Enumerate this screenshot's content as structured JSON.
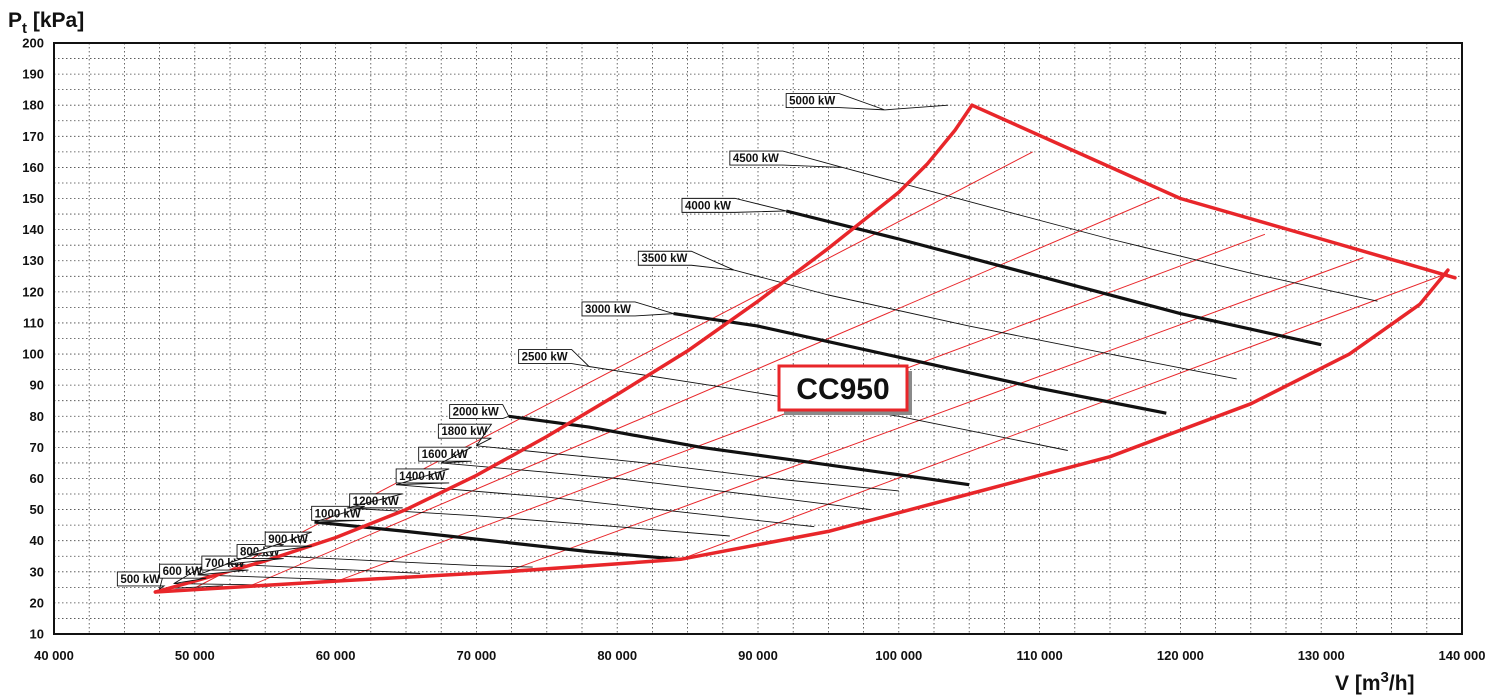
{
  "chart_data": {
    "type": "line",
    "title": "",
    "ylabel_main": "P",
    "ylabel_sub": "t",
    "ylabel_unit": " [kPa]",
    "xlabel_main": "V [m",
    "xlabel_sup": "3",
    "xlabel_unit": "/h]",
    "model": "CC950",
    "xlim": [
      40000,
      140000
    ],
    "ylim": [
      10,
      200
    ],
    "grid": true,
    "x_ticks": [
      {
        "v": 40000,
        "label": "40 000"
      },
      {
        "v": 50000,
        "label": "50 000"
      },
      {
        "v": 60000,
        "label": "60 000"
      },
      {
        "v": 70000,
        "label": "70 000"
      },
      {
        "v": 80000,
        "label": "80 000"
      },
      {
        "v": 90000,
        "label": "90 000"
      },
      {
        "v": 100000,
        "label": "100 000"
      },
      {
        "v": 110000,
        "label": "110 000"
      },
      {
        "v": 120000,
        "label": "120 000"
      },
      {
        "v": 130000,
        "label": "130 000"
      },
      {
        "v": 140000,
        "label": "140 000"
      }
    ],
    "y_ticks": [
      {
        "v": 10,
        "label": "10"
      },
      {
        "v": 20,
        "label": "20"
      },
      {
        "v": 30,
        "label": "30"
      },
      {
        "v": 40,
        "label": "40"
      },
      {
        "v": 50,
        "label": "50"
      },
      {
        "v": 60,
        "label": "60"
      },
      {
        "v": 70,
        "label": "70"
      },
      {
        "v": 80,
        "label": "80"
      },
      {
        "v": 90,
        "label": "90"
      },
      {
        "v": 100,
        "label": "100"
      },
      {
        "v": 110,
        "label": "110"
      },
      {
        "v": 120,
        "label": "120"
      },
      {
        "v": 130,
        "label": "130"
      },
      {
        "v": 140,
        "label": "140"
      },
      {
        "v": 150,
        "label": "150"
      },
      {
        "v": 160,
        "label": "160"
      },
      {
        "v": 170,
        "label": "170"
      },
      {
        "v": 180,
        "label": "180"
      },
      {
        "v": 190,
        "label": "190"
      },
      {
        "v": 200,
        "label": "200"
      }
    ],
    "envelope": {
      "color": "#e8262a",
      "upper": [
        [
          47200,
          23.5
        ],
        [
          50000,
          27
        ],
        [
          55000,
          33.5
        ],
        [
          60000,
          41
        ],
        [
          65000,
          50
        ],
        [
          70000,
          61
        ],
        [
          75000,
          73.5
        ],
        [
          80000,
          87
        ],
        [
          85000,
          101
        ],
        [
          90000,
          117
        ],
        [
          95000,
          134
        ],
        [
          100000,
          152
        ],
        [
          102000,
          161
        ],
        [
          104000,
          172
        ],
        [
          105200,
          180
        ]
      ],
      "right": [
        [
          105200,
          180
        ],
        [
          120000,
          150
        ],
        [
          130000,
          137
        ],
        [
          139500,
          124.5
        ]
      ],
      "lower": [
        [
          47200,
          23.5
        ],
        [
          60000,
          27
        ],
        [
          72000,
          30
        ],
        [
          84500,
          34
        ],
        [
          95000,
          43
        ],
        [
          105000,
          55
        ],
        [
          115000,
          67
        ],
        [
          125000,
          84
        ],
        [
          132000,
          100
        ],
        [
          137000,
          116
        ],
        [
          139000,
          127
        ]
      ]
    },
    "speed_lines": {
      "color": "#e8262a",
      "lines": [
        [
          [
            50000,
            24.8
          ],
          [
            109500,
            165
          ]
        ],
        [
          [
            54000,
            25.6
          ],
          [
            118500,
            150.5
          ]
        ],
        [
          [
            60000,
            26.8
          ],
          [
            126000,
            138.5
          ]
        ],
        [
          [
            72000,
            29.8
          ],
          [
            133000,
            131
          ]
        ],
        [
          [
            84500,
            34
          ],
          [
            139000,
            126
          ]
        ]
      ]
    },
    "power_curves": [
      {
        "label": "500 kW",
        "bold": false,
        "points": [
          [
            47500,
            24.5
          ],
          [
            52000,
            25.5
          ]
        ],
        "tag": [
          44500,
          27.7
        ]
      },
      {
        "label": "600 kW",
        "bold": false,
        "points": [
          [
            48500,
            26.2
          ],
          [
            56000,
            25.7
          ]
        ],
        "tag": [
          47500,
          30.2
        ]
      },
      {
        "label": "700 kW",
        "bold": false,
        "points": [
          [
            50200,
            29
          ],
          [
            60000,
            27.5
          ]
        ],
        "tag": [
          50500,
          32.8
        ]
      },
      {
        "label": "800 kW",
        "bold": false,
        "points": [
          [
            52200,
            32.5
          ],
          [
            66000,
            29.5
          ]
        ],
        "tag": [
          53000,
          36.5
        ]
      },
      {
        "label": "900 kW",
        "bold": false,
        "points": [
          [
            53800,
            35.5
          ],
          [
            70000,
            32
          ],
          [
            74000,
            31.5
          ]
        ],
        "tag": [
          55000,
          40.5
        ]
      },
      {
        "label": "1000 kW",
        "bold": true,
        "points": [
          [
            58500,
            46
          ],
          [
            65000,
            43
          ],
          [
            72000,
            39.5
          ],
          [
            78000,
            36.5
          ],
          [
            84500,
            34
          ]
        ],
        "tag": [
          58300,
          48.8
        ]
      },
      {
        "label": "1200 kW",
        "bold": false,
        "points": [
          [
            60800,
            50.5
          ],
          [
            70000,
            48
          ],
          [
            80000,
            44.5
          ],
          [
            88000,
            41.5
          ]
        ],
        "tag": [
          61000,
          52.8
        ]
      },
      {
        "label": "1400 kW",
        "bold": false,
        "points": [
          [
            64300,
            58
          ],
          [
            75000,
            54
          ],
          [
            85000,
            49
          ],
          [
            94000,
            44.5
          ]
        ],
        "tag": [
          64300,
          60.8
        ]
      },
      {
        "label": "1600 kW",
        "bold": false,
        "points": [
          [
            67500,
            65
          ],
          [
            80000,
            60
          ],
          [
            90000,
            54.5
          ],
          [
            98000,
            50
          ]
        ],
        "tag": [
          65900,
          67.8
        ]
      },
      {
        "label": "1800 kW",
        "bold": false,
        "points": [
          [
            70000,
            70.5
          ],
          [
            82000,
            65
          ],
          [
            92000,
            59.5
          ],
          [
            100000,
            56
          ]
        ],
        "tag": [
          67300,
          75.2
        ]
      },
      {
        "label": "2000 kW",
        "bold": true,
        "points": [
          [
            72300,
            80
          ],
          [
            78000,
            76.5
          ],
          [
            86000,
            70
          ],
          [
            94000,
            65
          ],
          [
            105000,
            58
          ]
        ],
        "tag": [
          68100,
          81.5
        ]
      },
      {
        "label": "2500 kW",
        "bold": false,
        "points": [
          [
            78000,
            96
          ],
          [
            88000,
            89
          ],
          [
            100000,
            80
          ],
          [
            112000,
            69
          ]
        ],
        "tag": [
          73000,
          99.2
        ]
      },
      {
        "label": "3000 kW",
        "bold": true,
        "points": [
          [
            84000,
            113
          ],
          [
            90000,
            109
          ],
          [
            100000,
            99
          ],
          [
            110000,
            89
          ],
          [
            119000,
            81
          ]
        ],
        "tag": [
          77500,
          114.5
        ]
      },
      {
        "label": "3500 kW",
        "bold": false,
        "points": [
          [
            88300,
            127
          ],
          [
            95000,
            119
          ],
          [
            105000,
            109
          ],
          [
            115000,
            100
          ],
          [
            124000,
            92
          ]
        ],
        "tag": [
          81500,
          130.8
        ]
      },
      {
        "label": "4000 kW",
        "bold": true,
        "points": [
          [
            92000,
            146
          ],
          [
            100000,
            137
          ],
          [
            110000,
            125
          ],
          [
            120000,
            113
          ],
          [
            130000,
            103
          ]
        ],
        "tag": [
          84600,
          147.8
        ]
      },
      {
        "label": "4500 kW",
        "bold": false,
        "points": [
          [
            96000,
            160
          ],
          [
            105000,
            149
          ],
          [
            115000,
            137
          ],
          [
            125000,
            126
          ],
          [
            134000,
            117
          ]
        ],
        "tag": [
          88000,
          163
        ]
      },
      {
        "label": "5000 kW",
        "bold": false,
        "points": [
          [
            99000,
            178.5
          ],
          [
            103500,
            180
          ]
        ],
        "tag": [
          92000,
          181.5
        ]
      }
    ]
  }
}
